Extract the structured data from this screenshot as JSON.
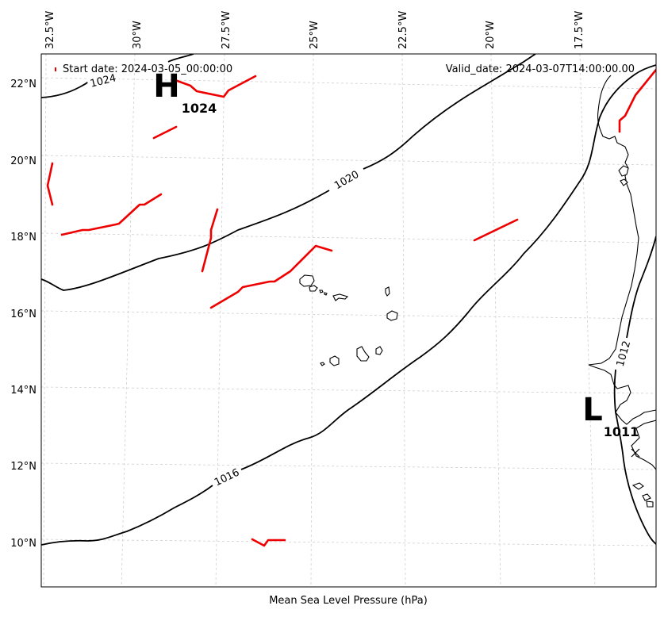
{
  "header": {
    "start_date": "Start date: 2024-03-05_00:00:00",
    "valid_date": "Valid_date: 2024-03-07T14:00:00.00"
  },
  "xlabel": "Mean Sea Level Pressure (hPa)",
  "map": {
    "lon_ticks": [
      "32.5°W",
      "30°W",
      "27.5°W",
      "25°W",
      "22.5°W",
      "20°W",
      "17.5°W"
    ],
    "lat_ticks": [
      "22°N",
      "20°N",
      "18°N",
      "16°N",
      "14°N",
      "12°N",
      "10°N"
    ],
    "isobar_labels": [
      "1024",
      "1020",
      "1016",
      "1012"
    ],
    "pressure_systems": [
      {
        "type": "high",
        "letter": "H",
        "value": "1024"
      },
      {
        "type": "low",
        "letter": "L",
        "value": "1011"
      }
    ],
    "colors": {
      "isobar": "#000000",
      "front": "#ee0000",
      "grid": "#cfcfcf"
    },
    "marker_icon": "x-mark-icon"
  }
}
